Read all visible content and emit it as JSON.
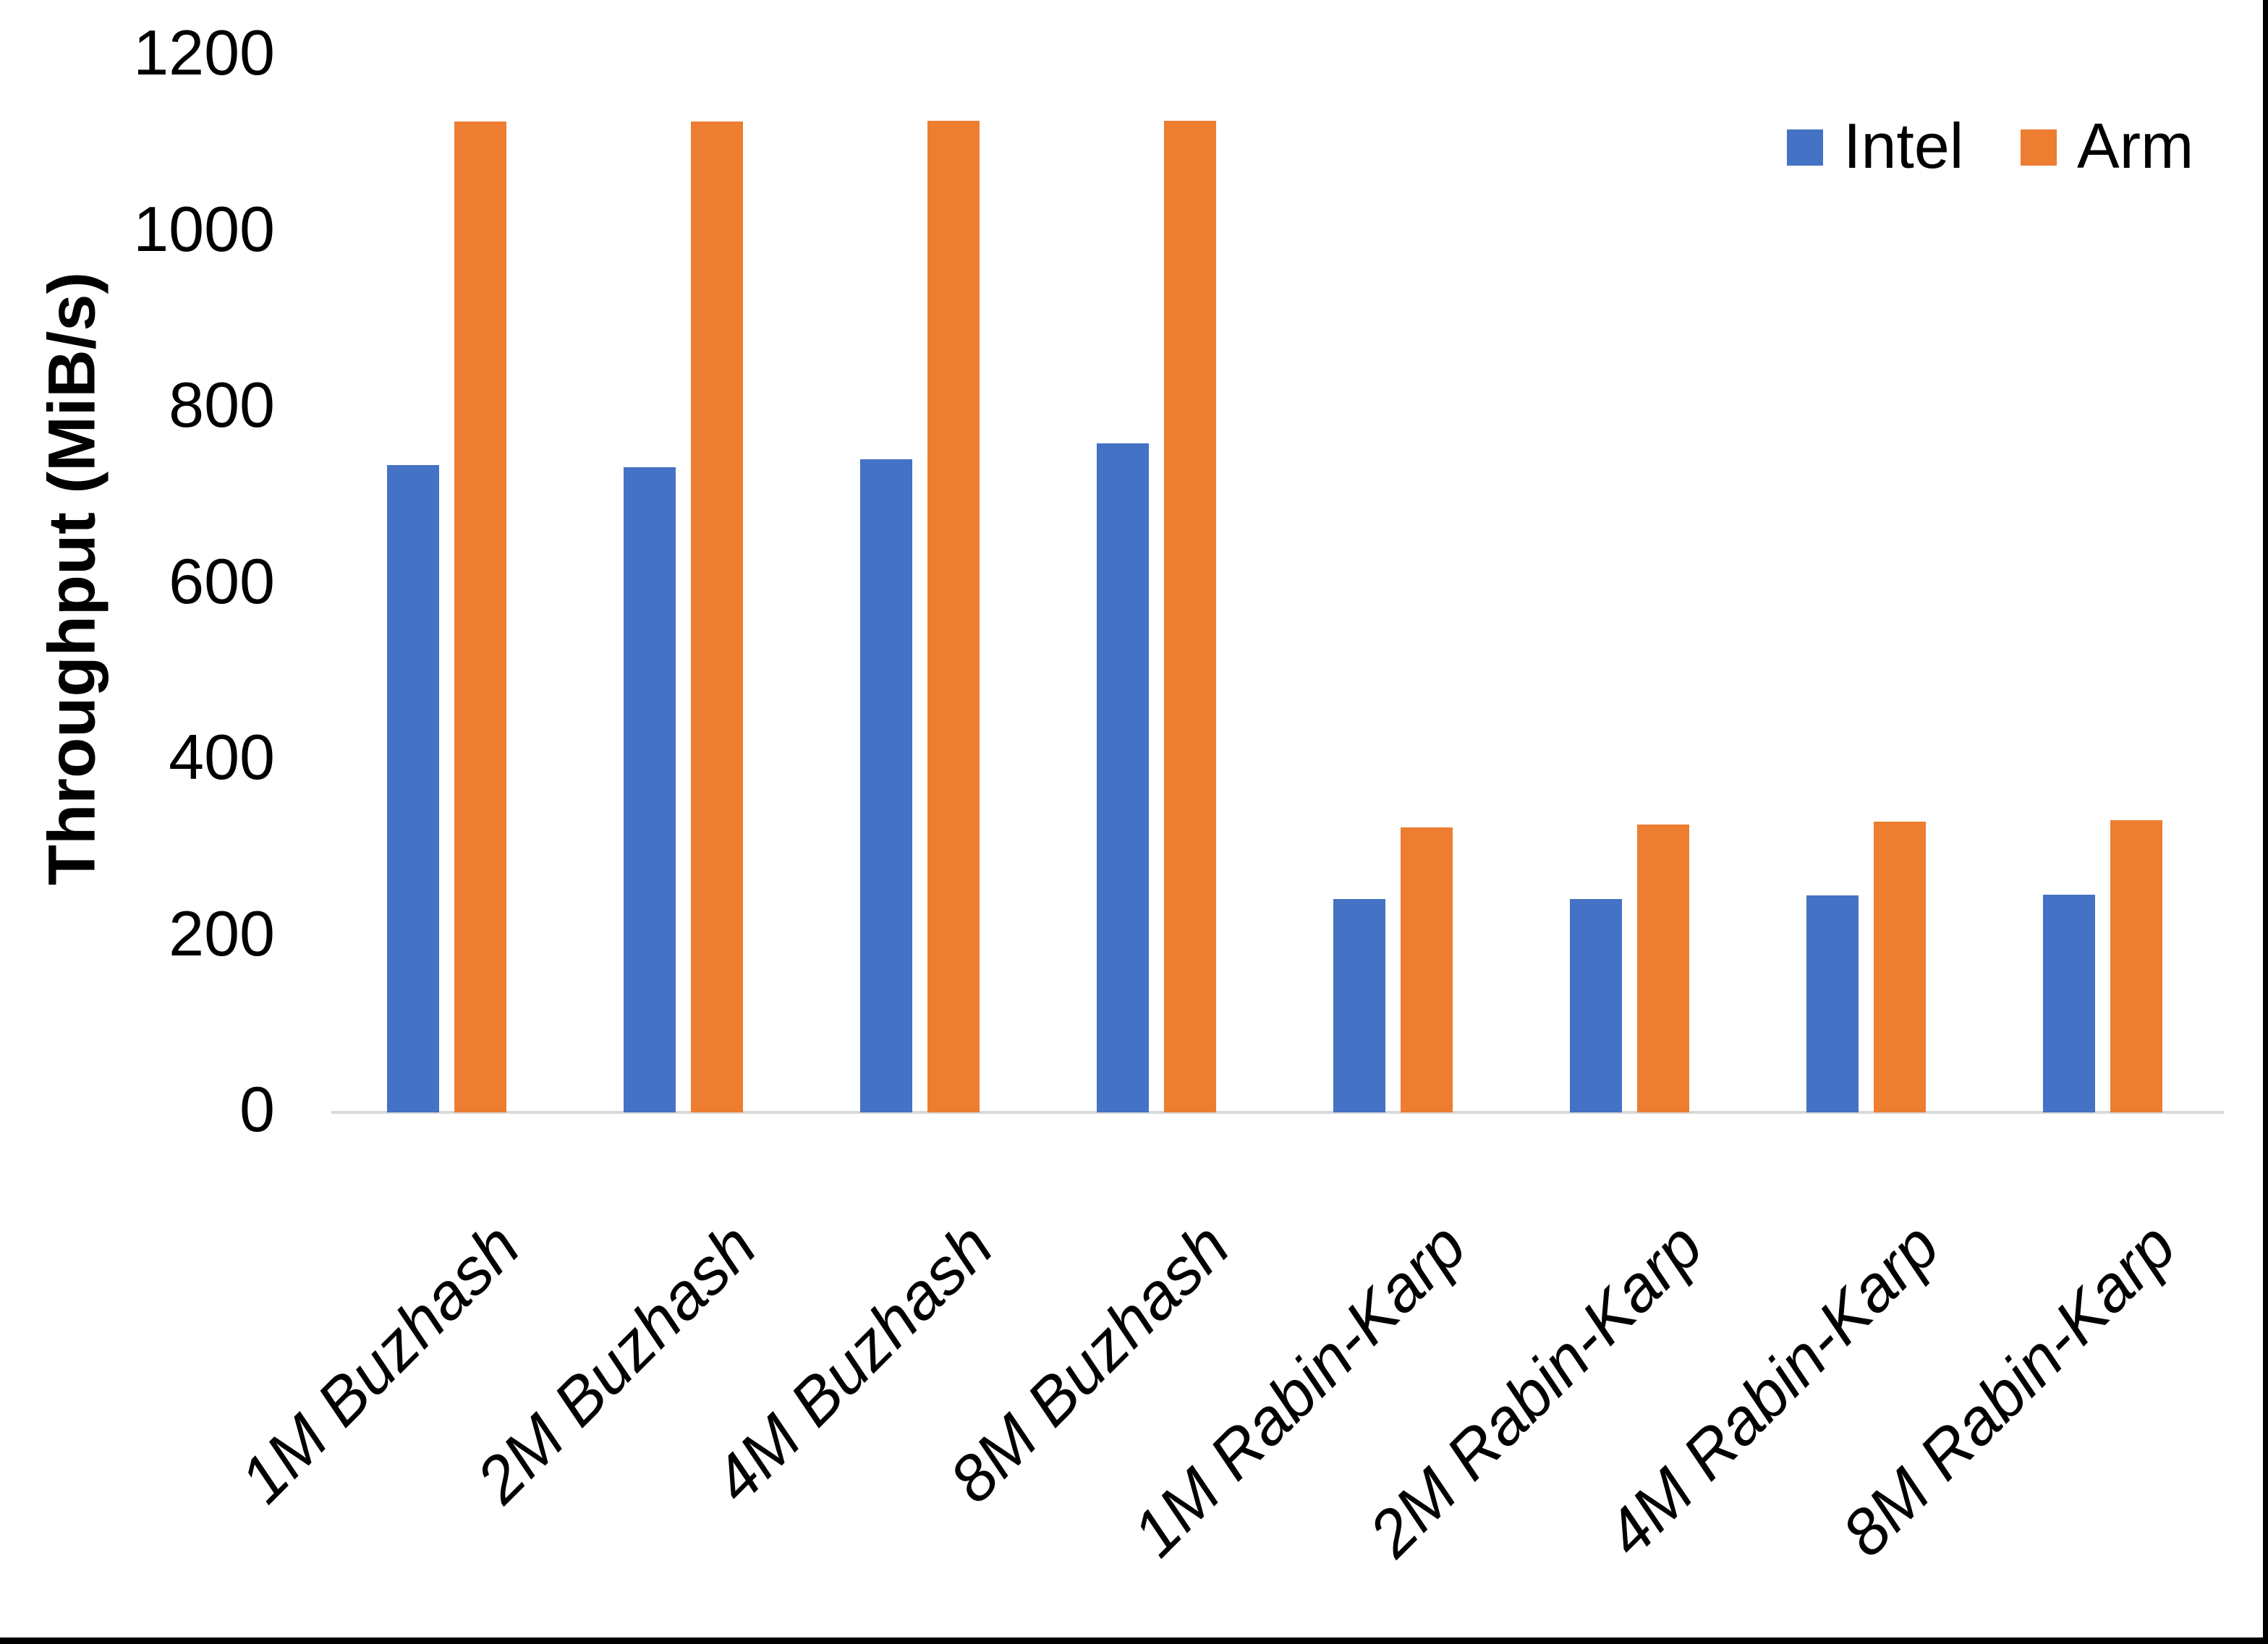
{
  "y_axis": {
    "title": "Throughput (MiB/s)"
  },
  "legend": {
    "items": [
      {
        "label": "Intel",
        "color": "#4472C4"
      },
      {
        "label": "Arm",
        "color": "#ED7D31"
      }
    ]
  },
  "chart_data": {
    "type": "bar",
    "title": "",
    "categories": [
      "1M Buzhash",
      "2M Buzhash",
      "4M Buzhash",
      "8M Buzhash",
      "1M Rabin-Karp",
      "2M Rabin-Karp",
      "4M Rabin-Karp",
      "8M Rabin-Karp"
    ],
    "series": [
      {
        "name": "Intel",
        "color": "#4472C4",
        "values": [
          735,
          733,
          742,
          760,
          242,
          242,
          246,
          247
        ]
      },
      {
        "name": "Arm",
        "color": "#ED7D31",
        "values": [
          1125,
          1125,
          1126,
          1126,
          324,
          327,
          330,
          332
        ]
      }
    ],
    "xlabel": "",
    "ylabel": "Throughput (MiB/s)",
    "ylim": [
      0,
      1200
    ],
    "yticks": [
      0,
      200,
      400,
      600,
      800,
      1000,
      1200
    ],
    "grid": false,
    "legend_position": "top-right",
    "axis_line_color": "#d9d9d9"
  }
}
